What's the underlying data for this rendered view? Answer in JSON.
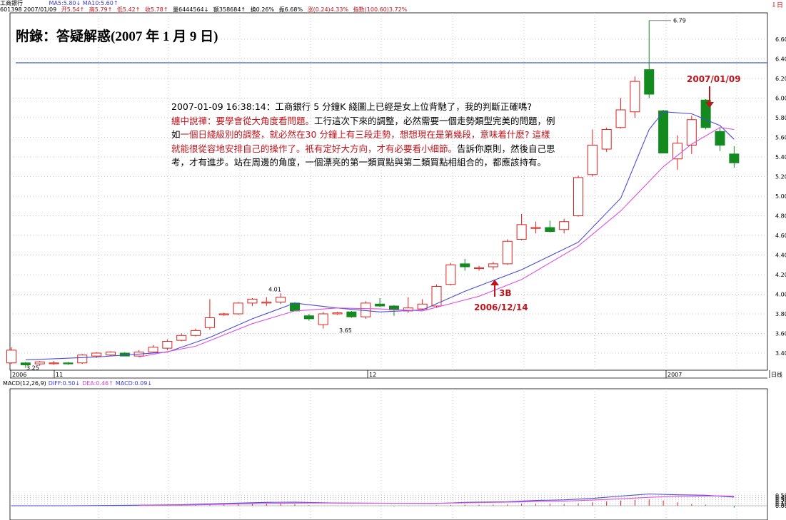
{
  "header": {
    "stock_name": "工商銀行",
    "ma_line": "MA5:5.80↓ MA10:5.60↑",
    "code_date": "601398 2007/01/09",
    "open": "开5.54↑",
    "high": "高5.79↑",
    "low": "低5.42↑",
    "close": "收5.78↑",
    "volume": "量6444564↓",
    "amount": "额358684↑",
    "turnover": "换0.26%",
    "amplitude": "振6.68%",
    "change": "涨(0.24)4.33%",
    "index": "指数(100.60)3.72%",
    "corner_mark": "⇩日"
  },
  "title": "附錄：答疑解惑(2007 年 1 月 9 日)",
  "note": {
    "line1": "2007-01-09 16:38:14：工商銀行 5 分鐘K 綫圖上已經是女上位背馳了，我的判斷正確嗎?",
    "red1": "纏中說禪：要學會從大角度看問題。",
    "black1": "工行這次下來的調整，必然需要一個走勢類型完美的問題，例如",
    "red2": "一個日綫級別的調整，就必然在30 分鐘上有三段走勢，想想現在是第幾段，意味着什麽? 這樣就能很從容地安排自己的操作了。衹有定好大方向，才有必要看小細節。",
    "black2": "告訴你原則，然後自己思考，才有進步。站在周邊的角度，一個漂亮的第一類買點與第二類買點相組合的，都應該持有。"
  },
  "annotations": {
    "date_top": "2007/01/09",
    "buy3": "3B",
    "date_bottom": "2006/12/14"
  },
  "chart_data": {
    "type": "candlestick",
    "ylim": [
      3.25,
      6.85
    ],
    "y_ticks": [
      "6.60",
      "6.40",
      "6.20",
      "6.00",
      "5.80",
      "5.60",
      "5.40",
      "5.20",
      "5.00",
      "4.80",
      "4.60",
      "4.40",
      "4.20",
      "4.00",
      "3.80",
      "3.60",
      "3.40"
    ],
    "x_labels": [
      "2006",
      "11",
      "12",
      "2007",
      "日线"
    ],
    "price_labels": [
      "6.79",
      "4.01",
      "3.65",
      "3.25"
    ],
    "hline": 6.36,
    "candles": [
      {
        "o": 3.3,
        "h": 3.46,
        "l": 3.29,
        "c": 3.43
      },
      {
        "o": 3.3,
        "h": 3.31,
        "l": 3.25,
        "c": 3.28
      },
      {
        "o": 3.29,
        "h": 3.32,
        "l": 3.27,
        "c": 3.31
      },
      {
        "o": 3.3,
        "h": 3.32,
        "l": 3.28,
        "c": 3.3
      },
      {
        "o": 3.3,
        "h": 3.31,
        "l": 3.28,
        "c": 3.29
      },
      {
        "o": 3.3,
        "h": 3.39,
        "l": 3.29,
        "c": 3.38
      },
      {
        "o": 3.37,
        "h": 3.41,
        "l": 3.35,
        "c": 3.4
      },
      {
        "o": 3.38,
        "h": 3.42,
        "l": 3.37,
        "c": 3.41
      },
      {
        "o": 3.4,
        "h": 3.41,
        "l": 3.37,
        "c": 3.37
      },
      {
        "o": 3.37,
        "h": 3.43,
        "l": 3.36,
        "c": 3.41
      },
      {
        "o": 3.41,
        "h": 3.48,
        "l": 3.4,
        "c": 3.46
      },
      {
        "o": 3.45,
        "h": 3.54,
        "l": 3.43,
        "c": 3.52
      },
      {
        "o": 3.53,
        "h": 3.6,
        "l": 3.52,
        "c": 3.58
      },
      {
        "o": 3.58,
        "h": 3.65,
        "l": 3.57,
        "c": 3.63
      },
      {
        "o": 3.66,
        "h": 3.95,
        "l": 3.64,
        "c": 3.76
      },
      {
        "o": 3.79,
        "h": 3.81,
        "l": 3.78,
        "c": 3.8
      },
      {
        "o": 3.8,
        "h": 3.92,
        "l": 3.79,
        "c": 3.91
      },
      {
        "o": 3.91,
        "h": 3.96,
        "l": 3.88,
        "c": 3.95
      },
      {
        "o": 3.91,
        "h": 3.97,
        "l": 3.88,
        "c": 3.92
      },
      {
        "o": 3.92,
        "h": 4.01,
        "l": 3.9,
        "c": 3.97
      },
      {
        "o": 3.91,
        "h": 3.92,
        "l": 3.83,
        "c": 3.83
      },
      {
        "o": 3.78,
        "h": 3.8,
        "l": 3.73,
        "c": 3.75
      },
      {
        "o": 3.69,
        "h": 3.82,
        "l": 3.65,
        "c": 3.8
      },
      {
        "o": 3.8,
        "h": 3.82,
        "l": 3.79,
        "c": 3.81
      },
      {
        "o": 3.82,
        "h": 3.83,
        "l": 3.76,
        "c": 3.77
      },
      {
        "o": 3.77,
        "h": 3.93,
        "l": 3.75,
        "c": 3.91
      },
      {
        "o": 3.9,
        "h": 3.96,
        "l": 3.87,
        "c": 3.88
      },
      {
        "o": 3.88,
        "h": 3.89,
        "l": 3.78,
        "c": 3.84
      },
      {
        "o": 3.83,
        "h": 3.97,
        "l": 3.81,
        "c": 3.86
      },
      {
        "o": 3.85,
        "h": 3.95,
        "l": 3.84,
        "c": 3.9
      },
      {
        "o": 3.88,
        "h": 4.1,
        "l": 3.86,
        "c": 4.08
      },
      {
        "o": 4.1,
        "h": 4.32,
        "l": 4.09,
        "c": 4.3
      },
      {
        "o": 4.31,
        "h": 4.36,
        "l": 4.24,
        "c": 4.28
      },
      {
        "o": 4.27,
        "h": 4.29,
        "l": 4.24,
        "c": 4.27
      },
      {
        "o": 4.28,
        "h": 4.33,
        "l": 4.25,
        "c": 4.31
      },
      {
        "o": 4.31,
        "h": 4.56,
        "l": 4.3,
        "c": 4.54
      },
      {
        "o": 4.56,
        "h": 4.82,
        "l": 4.55,
        "c": 4.71
      },
      {
        "o": 4.68,
        "h": 4.74,
        "l": 4.62,
        "c": 4.68
      },
      {
        "o": 4.68,
        "h": 4.75,
        "l": 4.63,
        "c": 4.64
      },
      {
        "o": 4.66,
        "h": 4.77,
        "l": 4.62,
        "c": 4.74
      },
      {
        "o": 4.8,
        "h": 5.21,
        "l": 4.79,
        "c": 5.19
      },
      {
        "o": 5.22,
        "h": 5.68,
        "l": 5.2,
        "c": 5.52
      },
      {
        "o": 5.48,
        "h": 5.7,
        "l": 5.45,
        "c": 5.68
      },
      {
        "o": 5.7,
        "h": 6.0,
        "l": 5.69,
        "c": 5.88
      },
      {
        "o": 5.86,
        "h": 6.22,
        "l": 5.8,
        "c": 6.17
      },
      {
        "o": 6.29,
        "h": 6.79,
        "l": 6.0,
        "c": 6.04
      },
      {
        "o": 5.87,
        "h": 5.88,
        "l": 5.44,
        "c": 5.44
      },
      {
        "o": 5.38,
        "h": 5.62,
        "l": 5.27,
        "c": 5.54
      },
      {
        "o": 5.52,
        "h": 5.82,
        "l": 5.43,
        "c": 5.78
      },
      {
        "o": 5.98,
        "h": 5.99,
        "l": 5.68,
        "c": 5.7
      },
      {
        "o": 5.66,
        "h": 5.7,
        "l": 5.46,
        "c": 5.52
      },
      {
        "o": 5.43,
        "h": 5.51,
        "l": 5.29,
        "c": 5.34
      }
    ],
    "ma5": [
      [
        1,
        3.33
      ],
      [
        6,
        3.36
      ],
      [
        11,
        3.41
      ],
      [
        14,
        3.56
      ],
      [
        17,
        3.75
      ],
      [
        20,
        3.91
      ],
      [
        23,
        3.86
      ],
      [
        26,
        3.82
      ],
      [
        29,
        3.84
      ],
      [
        32,
        4.03
      ],
      [
        36,
        4.25
      ],
      [
        40,
        4.53
      ],
      [
        43,
        4.98
      ],
      [
        45,
        5.68
      ],
      [
        46,
        5.86
      ],
      [
        48,
        5.84
      ],
      [
        50,
        5.72
      ],
      [
        51,
        5.58
      ]
    ],
    "ma10": [
      [
        9,
        3.36
      ],
      [
        13,
        3.47
      ],
      [
        17,
        3.7
      ],
      [
        20,
        3.83
      ],
      [
        23,
        3.86
      ],
      [
        26,
        3.85
      ],
      [
        29,
        3.83
      ],
      [
        33,
        3.98
      ],
      [
        36,
        4.15
      ],
      [
        40,
        4.49
      ],
      [
        43,
        4.85
      ],
      [
        46,
        5.3
      ],
      [
        48,
        5.53
      ],
      [
        50,
        5.7
      ],
      [
        51,
        5.68
      ]
    ]
  },
  "macd": {
    "label": "MACD(12,26,9)",
    "diff_label": "DIFF:0.50↓",
    "dea_label": "DEA:0.46↑",
    "macd_label": "MACD:0.09↓",
    "y_ticks": [
      "0.50",
      "0.40",
      "0.30",
      "0.20",
      "0.10",
      "0.00"
    ],
    "diff": [
      [
        0,
        0.0
      ],
      [
        4,
        0.0
      ],
      [
        8,
        0.02
      ],
      [
        12,
        0.05
      ],
      [
        15,
        0.11
      ],
      [
        18,
        0.16
      ],
      [
        20,
        0.17
      ],
      [
        23,
        0.13
      ],
      [
        26,
        0.12
      ],
      [
        30,
        0.11
      ],
      [
        32,
        0.16
      ],
      [
        35,
        0.19
      ],
      [
        37,
        0.25
      ],
      [
        39,
        0.28
      ],
      [
        41,
        0.35
      ],
      [
        43,
        0.46
      ],
      [
        45,
        0.56
      ],
      [
        47,
        0.52
      ],
      [
        49,
        0.5
      ],
      [
        51,
        0.41
      ]
    ],
    "dea": [
      [
        9,
        0.02
      ],
      [
        12,
        0.03
      ],
      [
        15,
        0.07
      ],
      [
        18,
        0.11
      ],
      [
        21,
        0.13
      ],
      [
        24,
        0.13
      ],
      [
        27,
        0.12
      ],
      [
        30,
        0.12
      ],
      [
        33,
        0.15
      ],
      [
        36,
        0.18
      ],
      [
        39,
        0.22
      ],
      [
        41,
        0.27
      ],
      [
        43,
        0.33
      ],
      [
        45,
        0.4
      ],
      [
        47,
        0.45
      ],
      [
        50,
        0.47
      ],
      [
        51,
        0.45
      ]
    ],
    "bars": [
      0.0,
      0.0,
      0.0,
      0.0,
      0.0,
      0.01,
      0.01,
      0.01,
      0.01,
      0.01,
      0.02,
      0.03,
      0.04,
      0.05,
      0.07,
      0.08,
      0.09,
      0.1,
      0.11,
      0.1,
      0.07,
      0.03,
      0.0,
      -0.01,
      -0.02,
      -0.01,
      -0.02,
      -0.03,
      -0.02,
      0.0,
      0.02,
      0.04,
      0.05,
      0.05,
      0.05,
      0.06,
      0.09,
      0.09,
      0.09,
      0.08,
      0.11,
      0.16,
      0.21,
      0.25,
      0.28,
      0.3,
      0.25,
      0.16,
      0.08,
      0.05,
      0.01,
      -0.09
    ]
  }
}
